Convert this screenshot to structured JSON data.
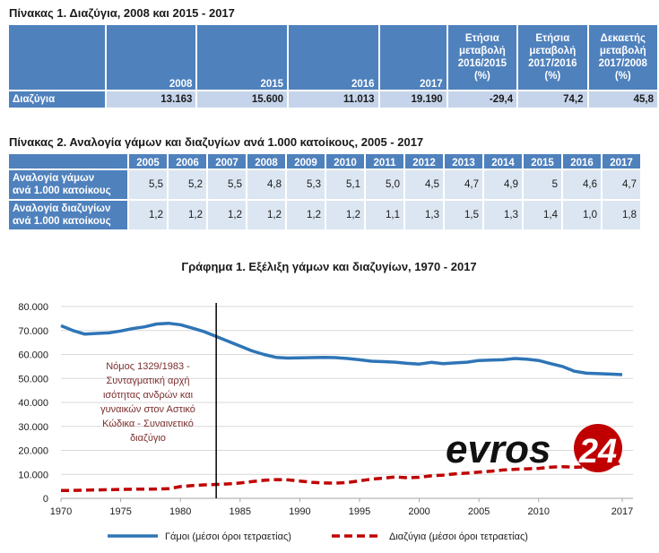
{
  "table1": {
    "title": "Πίνακας 1. Διαζύγια, 2008 και 2015 - 2017",
    "headers": [
      "2008",
      "2015",
      "2016",
      "2017"
    ],
    "change_headers": [
      [
        "Ετήσια",
        "μεταβολή",
        "2016/2015",
        "(%)"
      ],
      [
        "Ετήσια",
        "μεταβολή",
        "2017/2016",
        "(%)"
      ],
      [
        "Δεκαετής",
        "μεταβολή",
        "2017/2008",
        "(%)"
      ]
    ],
    "row_label": "Διαζύγια",
    "values": [
      "13.163",
      "15.600",
      "11.013",
      "19.190",
      "-29,4",
      "74,2",
      "45,8"
    ]
  },
  "table2": {
    "title": "Πίνακας 2. Αναλογία γάμων και διαζυγίων ανά 1.000 κατοίκους, 2005 - 2017",
    "years": [
      "2005",
      "2006",
      "2007",
      "2008",
      "2009",
      "2010",
      "2011",
      "2012",
      "2013",
      "2014",
      "2015",
      "2016",
      "2017"
    ],
    "rows": [
      {
        "label1": "Αναλογία γάμων",
        "label2": "ανά 1.000 κατοίκους",
        "values": [
          "5,5",
          "5,2",
          "5,5",
          "4,8",
          "5,3",
          "5,1",
          "5,0",
          "4,5",
          "4,7",
          "4,9",
          "5",
          "4,6",
          "4,7"
        ]
      },
      {
        "label1": "Αναλογία διαζυγίων",
        "label2": "ανά 1.000 κατοίκους",
        "values": [
          "1,2",
          "1,2",
          "1,2",
          "1,2",
          "1,2",
          "1,2",
          "1,1",
          "1,3",
          "1,5",
          "1,3",
          "1,4",
          "1,0",
          "1,8"
        ]
      }
    ]
  },
  "chart_data": {
    "type": "line",
    "title": "Γράφημα 1. Εξέλιξη γάμων και διαζυγίων,  1970 - 2017",
    "ylim": [
      0,
      80000
    ],
    "yticks": [
      "0",
      "10.000",
      "20.000",
      "30.000",
      "40.000",
      "50.000",
      "60.000",
      "70.000",
      "80.000"
    ],
    "xticks": [
      "1970",
      "1975",
      "1980",
      "1985",
      "1990",
      "1995",
      "2000",
      "2005",
      "2010",
      "2017"
    ],
    "annotation": [
      "Νόμος 1329/1983 -",
      "Συνταγματική αρχή",
      "ισότητας ανδρών και",
      "γυναικών στον Αστικό",
      "Κώδικα - Συναινετικό",
      "διαζύγιο"
    ],
    "marker_year": 1983,
    "x": [
      1970,
      1971,
      1972,
      1973,
      1974,
      1975,
      1976,
      1977,
      1978,
      1979,
      1980,
      1981,
      1982,
      1983,
      1984,
      1985,
      1986,
      1987,
      1988,
      1989,
      1990,
      1991,
      1992,
      1993,
      1994,
      1995,
      1996,
      1997,
      1998,
      1999,
      2000,
      2001,
      2002,
      2003,
      2004,
      2005,
      2006,
      2007,
      2008,
      2009,
      2010,
      2011,
      2012,
      2013,
      2014,
      2015,
      2016,
      2017
    ],
    "series": [
      {
        "name": "Γάμοι (μέσοι όροι τετραετίας)",
        "color": "#2e75b6",
        "dash": "solid",
        "values": [
          72000,
          70000,
          68500,
          68800,
          69000,
          69800,
          70800,
          71500,
          72700,
          73000,
          72400,
          71000,
          69500,
          67500,
          65500,
          63500,
          61500,
          60000,
          58800,
          58500,
          58600,
          58700,
          58800,
          58700,
          58300,
          57800,
          57200,
          57000,
          56800,
          56300,
          56000,
          56700,
          56200,
          56500,
          56800,
          57500,
          57700,
          57800,
          58300,
          58000,
          57500,
          56200,
          55000,
          53000,
          52200,
          52000,
          51800,
          51600
        ]
      },
      {
        "name": "Διαζύγια (μέσοι όροι τετραετίας)",
        "color": "#c00000",
        "dash": "dashed",
        "values": [
          3300,
          3300,
          3400,
          3500,
          3600,
          3700,
          3800,
          3800,
          3900,
          4000,
          4900,
          5300,
          5600,
          5800,
          6000,
          6400,
          7000,
          7500,
          7800,
          7700,
          7200,
          6700,
          6400,
          6300,
          6600,
          7300,
          8000,
          8400,
          8900,
          8600,
          8800,
          9400,
          9700,
          10200,
          10500,
          10900,
          11300,
          11800,
          12100,
          12300,
          12500,
          13000,
          13200,
          13000,
          13100,
          13200,
          13600,
          14900
        ]
      }
    ]
  },
  "watermark": {
    "text": "evros24"
  }
}
